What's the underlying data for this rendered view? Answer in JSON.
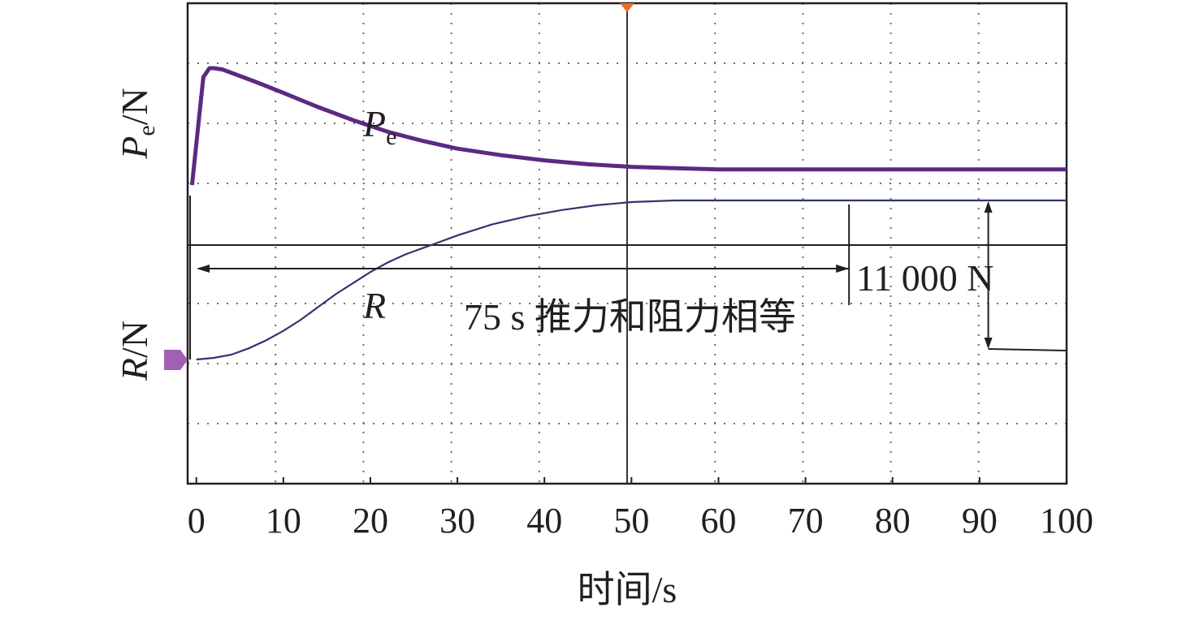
{
  "chart_data": {
    "type": "line",
    "xlabel": "时间/s",
    "ylabel_top": {
      "var": "P",
      "sub": "e",
      "unit": "/N"
    },
    "ylabel_bottom": {
      "var": "R",
      "unit": "/N"
    },
    "x_ticks": [
      "0",
      "10",
      "20",
      "30",
      "40",
      "50",
      "60",
      "70",
      "80",
      "90",
      "100"
    ],
    "xlim": [
      -1,
      100
    ],
    "grid": true,
    "series": [
      {
        "name": "Pe",
        "label_var": "P",
        "label_sub": "e",
        "color": "#5b2a82",
        "x": [
          -0.5,
          0.2,
          0.8,
          1.5,
          2.0,
          3,
          5,
          7,
          10,
          14,
          18,
          22,
          26,
          30,
          35,
          40,
          45,
          50,
          55,
          60,
          70,
          80,
          90,
          100
        ],
        "y": [
          0.1,
          0.55,
          0.93,
          1.0,
          1.0,
          0.99,
          0.94,
          0.89,
          0.81,
          0.7,
          0.6,
          0.51,
          0.44,
          0.38,
          0.33,
          0.29,
          0.26,
          0.24,
          0.23,
          0.22,
          0.22,
          0.22,
          0.22,
          0.22
        ]
      },
      {
        "name": "R",
        "label_var": "R",
        "color": "#2e3670",
        "x": [
          0,
          2,
          4,
          6,
          8,
          10,
          12,
          14,
          16,
          18,
          20,
          22,
          24,
          26,
          28,
          30,
          34,
          38,
          42,
          46,
          50,
          55,
          60,
          70,
          80,
          90,
          100
        ],
        "y": [
          0.0,
          0.01,
          0.03,
          0.07,
          0.12,
          0.18,
          0.25,
          0.33,
          0.41,
          0.48,
          0.55,
          0.61,
          0.66,
          0.7,
          0.74,
          0.78,
          0.85,
          0.9,
          0.94,
          0.97,
          0.99,
          1.0,
          1.0,
          1.0,
          1.0,
          1.0,
          1.0
        ]
      }
    ],
    "annotations": {
      "time_text": "75 s 推力和阻力相等",
      "time_marker_x": 75,
      "force_text": "11 000 N",
      "force_marker_x": 91
    },
    "colors": {
      "frame": "#231f20",
      "grid": "#6d6e71",
      "marker_top": "#e76f2c",
      "marker_left": "#a35fb0"
    }
  }
}
